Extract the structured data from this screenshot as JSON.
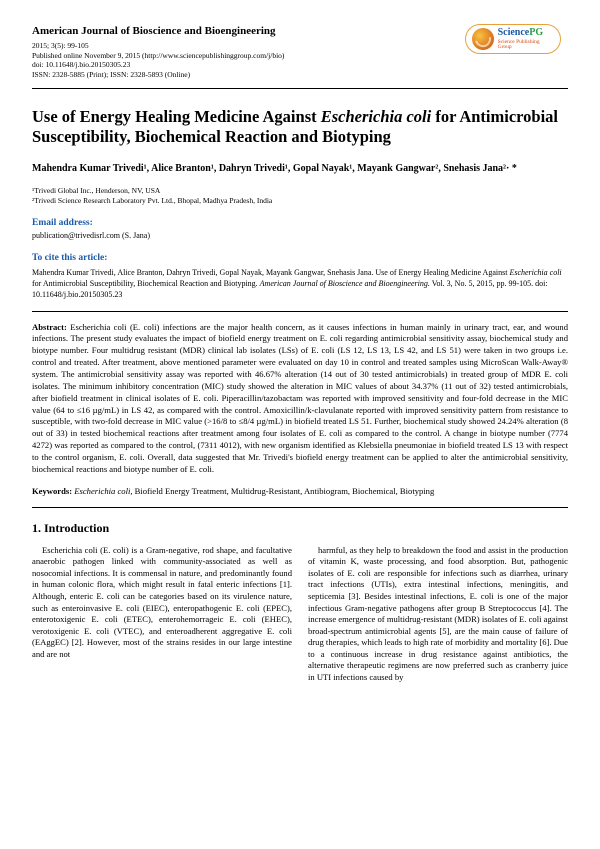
{
  "header": {
    "journal_name": "American Journal of Bioscience and Bioengineering",
    "meta_line1": "2015; 3(5): 99-105",
    "meta_line2": "Published online November 9, 2015 (http://www.sciencepublishinggroup.com/j/bio)",
    "meta_line3": "doi: 10.11648/j.bio.20150305.23",
    "meta_line4": "ISSN: 2328-5885 (Print); ISSN: 2328-5893 (Online)",
    "logo": {
      "text_science": "Science",
      "text_pg": "PG",
      "subtitle": "Science Publishing Group",
      "border_color": "#e8a13a",
      "science_color": "#1a5aa8",
      "pg_color": "#2f9e44",
      "subtitle_color": "#d9480f"
    }
  },
  "title": {
    "pre": "Use of Energy Healing Medicine Against ",
    "italic": "Escherichia coli",
    "post": " for Antimicrobial Susceptibility, Biochemical Reaction and Biotyping"
  },
  "authors_html": "Mahendra Kumar Trivedi¹, Alice Branton¹, Dahryn Trivedi¹, Gopal Nayak¹, Mayank Gangwar², Snehasis Jana²· *",
  "affiliations": {
    "a1": "¹Trivedi Global Inc., Henderson, NV, USA",
    "a2": "²Trivedi Science Research Laboratory Pvt. Ltd., Bhopal, Madhya Pradesh, India"
  },
  "email": {
    "label": "Email address:",
    "value": "publication@trivedisrl.com (S. Jana)"
  },
  "cite": {
    "label": "To cite this article:",
    "text_pre": "Mahendra Kumar Trivedi, Alice Branton, Dahryn Trivedi, Gopal Nayak, Mayank Gangwar, Snehasis Jana. Use of Energy Healing Medicine Against ",
    "text_italic1": "Escherichia coli",
    "text_mid": " for Antimicrobial Susceptibility, Biochemical Reaction and Biotyping. ",
    "text_italic2": "American Journal of Bioscience and Bioengineering.",
    "text_post": " Vol. 3, No. 5, 2015, pp. 99-105. doi: 10.11648/j.bio.20150305.23"
  },
  "abstract": {
    "label": "Abstract:",
    "body": " Escherichia coli (E. coli) infections are the major health concern, as it causes infections in human mainly in urinary tract, ear, and wound infections. The present study evaluates the impact of biofield energy treatment on E. coli regarding antimicrobial sensitivity assay, biochemical study and biotype number. Four multidrug resistant (MDR) clinical lab isolates (LSs) of E. coli (LS 12, LS 13, LS 42, and LS 51) were taken in two groups i.e. control and treated. After treatment, above mentioned parameter were evaluated on day 10 in control and treated samples using MicroScan Walk-Away® system. The antimicrobial sensitivity assay was reported with 46.67% alteration (14 out of 30 tested antimicrobials) in treated group of MDR E. coli isolates. The minimum inhibitory concentration (MIC) study showed the alteration in MIC values of about 34.37% (11 out of 32) tested antimicrobials, after biofield treatment in clinical isolates of E. coli. Piperacillin/tazobactam was reported with improved sensitivity and four-fold decrease in the MIC value (64 to ≤16 µg/mL) in LS 42, as compared with the control. Amoxicillin/k-clavulanate reported with improved sensitivity pattern from resistance to susceptible, with two-fold decrease in MIC value (>16/8 to ≤8/4 µg/mL) in biofield treated LS 51. Further, biochemical study showed 24.24% alteration (8 out of 33) in tested biochemical reactions after treatment among four isolates of E. coli as compared to the control. A change in biotype number (7774 4272) was reported as compared to the control, (7311 4012), with new organism identified as Klebsiella pneumoniae in biofield treated LS 13 with respect to the control organism, E. coli. Overall, data suggested that Mr. Trivedi's biofield energy treatment can be applied to alter the antimicrobial sensitivity, biochemical reactions and biotype number of E. coli."
  },
  "keywords": {
    "label": "Keywords:",
    "italic": " Escherichia coli",
    "rest": ", Biofield Energy Treatment, Multidrug-Resistant, Antibiogram, Biochemical, Biotyping"
  },
  "intro": {
    "heading": "1. Introduction",
    "col1": "Escherichia coli (E. coli) is a Gram-negative, rod shape, and facultative anaerobic pathogen linked with community-associated as well as nosocomial infections. It is commensal in nature, and predominantly found in human colonic flora, which might result in fatal enteric infections [1]. Although, enteric E. coli can be categories based on its virulence nature, such as enteroinvasive E. coli (EIEC), enteropathogenic E. coli (EPEC), enterotoxigenic E. coli (ETEC), enterohemorrageic E. coli (EHEC), verotoxigenic E. coli (VTEC), and enteroadherent aggregative E. coli (EAggEC) [2]. However, most of the strains resides in our large intestine and are not",
    "col2": "harmful, as they help to breakdown the food and assist in the production of vitamin K, waste processing, and food absorption. But, pathogenic isolates of E. coli are responsible for infections such as diarrhea, urinary tract infections (UTIs), extra intestinal infections, meningitis, and septicemia [3]. Besides intestinal infections, E. coli is one of the major infectious Gram-negative pathogens after group B Streptococcus [4]. The increase emergence of multidrug-resistant (MDR) isolates of E. coli against broad-spectrum antimicrobial agents [5], are the main cause of failure of drug therapies, which leads to high rate of morbidity and mortality [6]. Due to a continuous increase in drug resistance against antibiotics, the alternative therapeutic regimens are now preferred such as cranberry juice in UTI infections caused by"
  },
  "colors": {
    "heading_link": "#1a5aa8",
    "text": "#000000",
    "rule": "#000000"
  },
  "typography": {
    "body_family": "Times New Roman",
    "title_size_pt": 16.5,
    "body_size_pt": 8.6,
    "meta_size_pt": 7.5
  }
}
